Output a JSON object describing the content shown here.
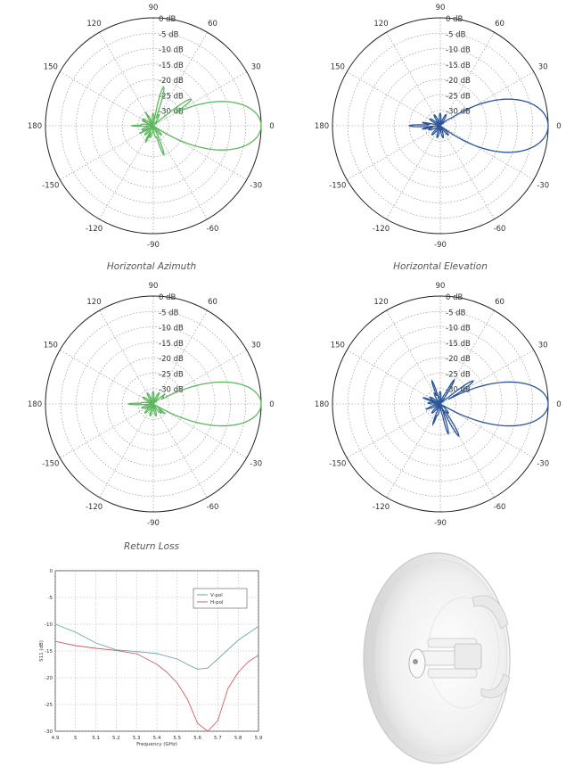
{
  "captions": {
    "horizontal_azimuth": "Horizontal Azimuth",
    "horizontal_elevation": "Horizontal Elevation",
    "return_loss": "Return Loss"
  },
  "polar_common": {
    "angle_labels": [
      {
        "deg": 90,
        "text": "90"
      },
      {
        "deg": 60,
        "text": "60"
      },
      {
        "deg": 30,
        "text": "30"
      },
      {
        "deg": 0,
        "text": "0"
      },
      {
        "deg": -30,
        "text": "-30"
      },
      {
        "deg": -60,
        "text": "-60"
      },
      {
        "deg": -90,
        "text": "-90"
      },
      {
        "deg": -120,
        "text": "-120"
      },
      {
        "deg": -150,
        "text": "-150"
      },
      {
        "deg": 180,
        "text": "180"
      },
      {
        "deg": 150,
        "text": "150"
      },
      {
        "deg": 120,
        "text": "120"
      }
    ],
    "rings": [
      "0 dB",
      "-5 dB",
      "-10 dB",
      "-15 dB",
      "-20 dB",
      "-25 dB",
      "-30 dB"
    ],
    "r_range_db": [
      -35,
      0
    ]
  },
  "chart_data": [
    {
      "type": "polar",
      "id": "polar-top-left",
      "color": "#5cb85c",
      "main_lobe_db": 0,
      "beamwidth_deg": 20,
      "sidelobes": [
        {
          "angle": 35,
          "db": -20
        },
        {
          "angle": 20,
          "db": -27
        },
        {
          "angle": 75,
          "db": -22
        },
        {
          "angle": -25,
          "db": -24
        },
        {
          "angle": -70,
          "db": -25
        },
        {
          "angle": 120,
          "db": -30
        },
        {
          "angle": -115,
          "db": -29
        },
        {
          "angle": 180,
          "db": -28
        },
        {
          "angle": 155,
          "db": -31
        },
        {
          "angle": -150,
          "db": -30
        }
      ]
    },
    {
      "type": "polar",
      "id": "polar-top-right",
      "color": "#2b5599",
      "main_lobe_db": 0,
      "beamwidth_deg": 22,
      "sidelobes": [
        {
          "angle": 180,
          "db": -25
        },
        {
          "angle": 170,
          "db": -29
        },
        {
          "angle": -170,
          "db": -29
        },
        {
          "angle": 100,
          "db": -33
        },
        {
          "angle": -100,
          "db": -33
        }
      ]
    },
    {
      "type": "polar",
      "id": "polar-mid-left",
      "color": "#5cb85c",
      "main_lobe_db": 0,
      "beamwidth_deg": 18,
      "sidelobes": [
        {
          "angle": 15,
          "db": -25
        },
        {
          "angle": -15,
          "db": -26
        },
        {
          "angle": 40,
          "db": -30
        },
        {
          "angle": -40,
          "db": -30
        },
        {
          "angle": 180,
          "db": -27
        },
        {
          "angle": 150,
          "db": -32
        },
        {
          "angle": -150,
          "db": -32
        }
      ]
    },
    {
      "type": "polar",
      "id": "polar-mid-right",
      "color": "#2b5599",
      "main_lobe_db": 0,
      "beamwidth_deg": 18,
      "sidelobes": [
        {
          "angle": 20,
          "db": -24
        },
        {
          "angle": 35,
          "db": -22
        },
        {
          "angle": 60,
          "db": -26
        },
        {
          "angle": -25,
          "db": -25
        },
        {
          "angle": -60,
          "db": -23
        },
        {
          "angle": -75,
          "db": -25
        },
        {
          "angle": 110,
          "db": -27
        },
        {
          "angle": -110,
          "db": -28
        },
        {
          "angle": 160,
          "db": -29
        },
        {
          "angle": -160,
          "db": -30
        }
      ]
    },
    {
      "type": "line",
      "id": "return-loss",
      "xlabel": "Frequency (GHz)",
      "ylabel": "S11 (dB)",
      "xlim": [
        4.9,
        5.9
      ],
      "ylim": [
        -30,
        0
      ],
      "xticks": [
        4.9,
        5,
        5.1,
        5.2,
        5.3,
        5.4,
        5.5,
        5.6,
        5.7,
        5.8,
        5.9
      ],
      "xtick_labels": [
        "4.9",
        "5",
        "5.1",
        "5.2",
        "5.3",
        "5.4",
        "5.5",
        "5.6",
        "5.7",
        "5.8",
        "5.9"
      ],
      "yticks": [
        0,
        -5,
        -10,
        -15,
        -20,
        -25,
        -30
      ],
      "ytick_labels": [
        "0",
        "-5",
        "-10",
        "-15",
        "-20",
        "-25",
        "-30"
      ],
      "grid": true,
      "legend_position": "top-right",
      "series": [
        {
          "name": "V-pol",
          "color": "#6aa6a6",
          "x": [
            4.9,
            5.0,
            5.1,
            5.2,
            5.3,
            5.4,
            5.5,
            5.55,
            5.6,
            5.65,
            5.7,
            5.8,
            5.9
          ],
          "y": [
            -10,
            -11.5,
            -13.5,
            -14.8,
            -15.1,
            -15.5,
            -16.5,
            -17.5,
            -18.4,
            -18.2,
            -16.5,
            -13,
            -10.4
          ]
        },
        {
          "name": "H-pol",
          "color": "#d06060",
          "x": [
            4.9,
            5.0,
            5.1,
            5.2,
            5.3,
            5.4,
            5.45,
            5.5,
            5.55,
            5.6,
            5.65,
            5.7,
            5.75,
            5.8,
            5.85,
            5.9
          ],
          "y": [
            -13.2,
            -14,
            -14.5,
            -14.9,
            -15.5,
            -17.5,
            -19,
            -21,
            -24,
            -28.5,
            -30,
            -28,
            -22,
            -19,
            -17,
            -15.8
          ]
        }
      ]
    }
  ]
}
